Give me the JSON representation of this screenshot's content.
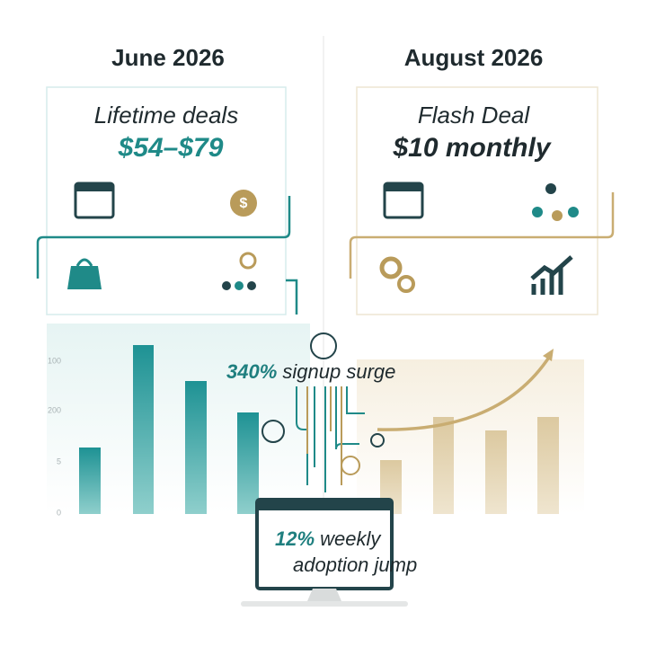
{
  "columns": [
    {
      "heading": "June 2026",
      "card": {
        "title": "Lifetime deals",
        "price": "$54–$79"
      },
      "axis_labels": [
        "100",
        "200",
        "5",
        "0"
      ]
    },
    {
      "heading": "August 2026",
      "card": {
        "title": "Flash Deal",
        "price": "$10 monthly"
      }
    }
  ],
  "callouts": {
    "surge": {
      "emphasis": "340%",
      "text": "signup surge"
    },
    "monitor": {
      "emphasis": "12%",
      "text": "weekly",
      "line2": "adoption jump"
    }
  }
}
